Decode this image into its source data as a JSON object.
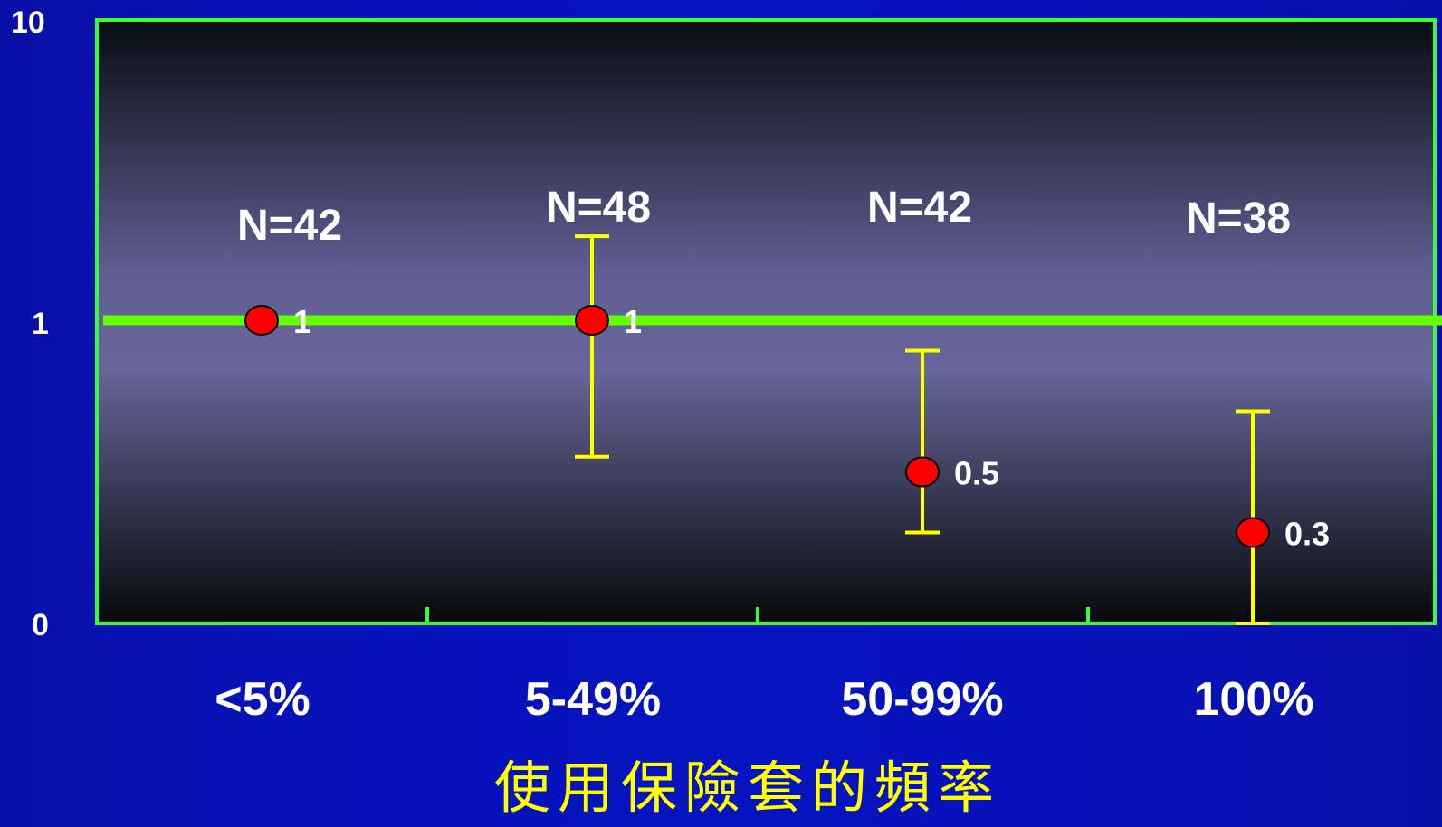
{
  "chart_data": {
    "type": "scatter",
    "title": "",
    "xlabel": "使用保險套的頻率",
    "ylabel": "",
    "y_ticks": [
      "10",
      "1",
      "0"
    ],
    "categories": [
      "<5%",
      "5-49%",
      "50-99%",
      "100%"
    ],
    "sample_sizes": [
      "N=42",
      "N=48",
      "N=42",
      "N=38"
    ],
    "values": [
      1,
      1,
      0.5,
      0.3
    ],
    "value_labels": [
      "1",
      "1",
      "0.5",
      "0.3"
    ],
    "ci_low": [
      null,
      0.55,
      0.3,
      0
    ],
    "ci_high": [
      null,
      1.9,
      0.9,
      0.7
    ],
    "reference_line": 1,
    "colors": {
      "point": "#ff0000",
      "errorbar": "#ffff00",
      "reference": "#66ff00",
      "frame": "#33ff33",
      "label": "#ffffff",
      "xlabel": "#ffff00"
    }
  }
}
